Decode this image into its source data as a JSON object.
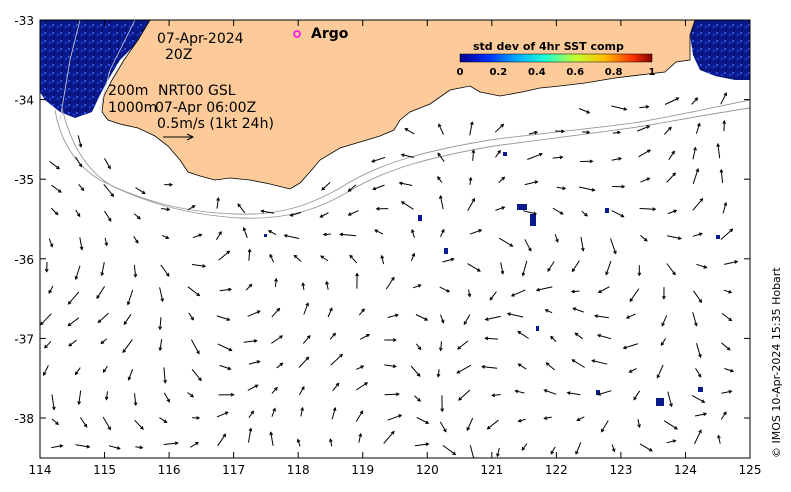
{
  "map": {
    "date_line": "07-Apr-2024",
    "time_line": "20Z",
    "depth_200": "200m",
    "depth_1000": "1000m",
    "product": "NRT00 GSL",
    "product_time": "07-Apr 06:00Z",
    "scale_label": "0.5m/s (1kt 24h)",
    "argo_label": "Argo",
    "credit": "© IMOS 10-Apr-2024 15:35 Hobart",
    "land_color": "#fccb99",
    "high_std_color": "#0a1a8c"
  },
  "colorbar": {
    "title": "std dev of 4hr SST comp",
    "ticks": [
      "0",
      "0.2",
      "0.4",
      "0.6",
      "0.8",
      "1"
    ]
  },
  "axes": {
    "x_ticks": [
      "114",
      "115",
      "116",
      "117",
      "118",
      "119",
      "120",
      "121",
      "122",
      "123",
      "124",
      "125"
    ],
    "y_ticks": [
      "-33",
      "-34",
      "-35",
      "-36",
      "-37",
      "-38"
    ]
  }
}
